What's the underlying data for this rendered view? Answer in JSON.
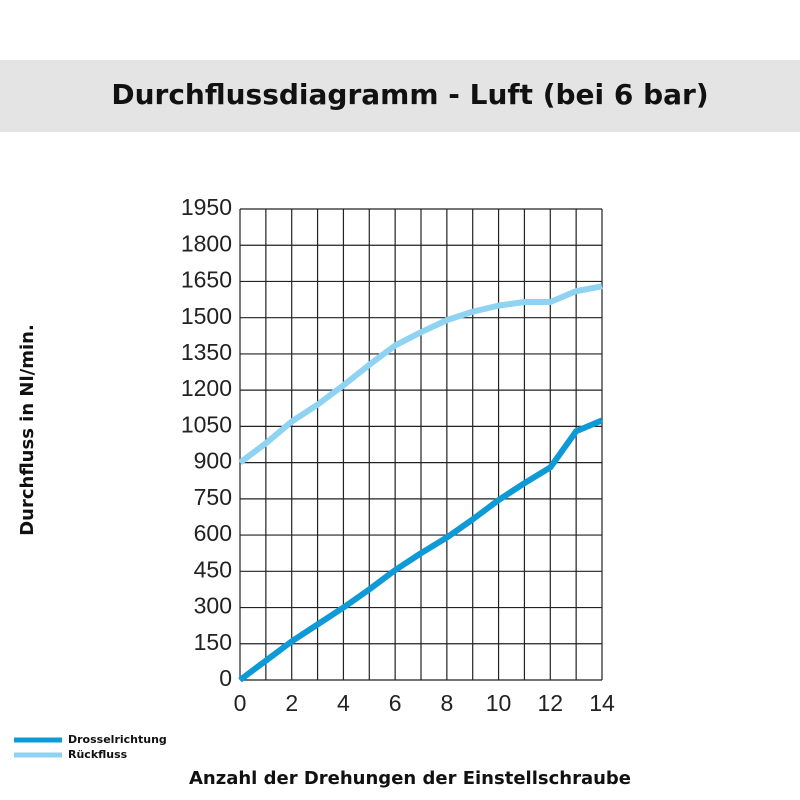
{
  "chart_data": {
    "type": "line",
    "title": "Durchflussdiagramm - Luft (bei 6 bar)",
    "x_label": "Anzahl der Drehungen der Einstellschraube",
    "y_label": "Durchfluss in Nl/min.",
    "x": [
      0,
      1,
      2,
      3,
      4,
      5,
      6,
      7,
      8,
      9,
      10,
      11,
      12,
      13,
      14
    ],
    "series": [
      {
        "name": "Drosselrichtung",
        "color": "#0e9ad7",
        "values": [
          0,
          80,
          160,
          230,
          300,
          375,
          455,
          525,
          590,
          665,
          745,
          815,
          880,
          1030,
          1075
        ]
      },
      {
        "name": "Rückfluss",
        "color": "#8fd3f3",
        "values": [
          900,
          980,
          1070,
          1140,
          1220,
          1305,
          1385,
          1440,
          1490,
          1525,
          1550,
          1565,
          1565,
          1610,
          1630
        ]
      }
    ],
    "xlim": [
      0,
      14
    ],
    "xticks": [
      0,
      2,
      4,
      6,
      8,
      10,
      12,
      14
    ],
    "x_minor_ticks": [
      1,
      3,
      5,
      7,
      9,
      11,
      13
    ],
    "ylim": [
      0,
      1950
    ],
    "yticks": [
      0,
      150,
      300,
      450,
      600,
      750,
      900,
      1050,
      1200,
      1350,
      1500,
      1650,
      1800,
      1950
    ],
    "grid": true,
    "legend": "bottom-left"
  }
}
